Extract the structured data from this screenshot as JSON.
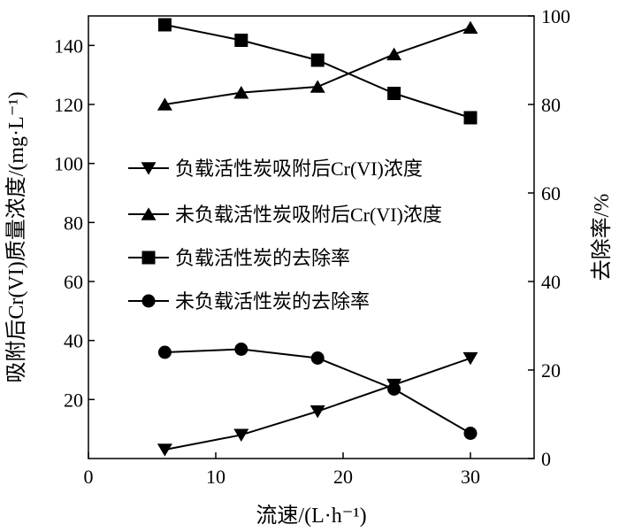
{
  "chart_data": {
    "type": "line",
    "xlabel": "流速/(L·h⁻¹)",
    "ylabel_left": "吸附后Cr(VI)质量浓度/(mg·L⁻¹)",
    "ylabel_right": "去除率/%",
    "xlim": [
      0,
      35
    ],
    "ylim_left": [
      0,
      150
    ],
    "ylim_right": [
      0,
      100
    ],
    "x_ticks": [
      0,
      10,
      20,
      30
    ],
    "y_left_ticks": [
      20,
      40,
      60,
      80,
      100,
      120,
      140
    ],
    "y_right_ticks": [
      0,
      20,
      40,
      60,
      80,
      100
    ],
    "grid": false,
    "legend_position": "center-left",
    "x": [
      6,
      12,
      18,
      24,
      30
    ],
    "series": [
      {
        "name": "负载活性炭吸附后Cr(VI)浓度",
        "marker": "triangle-down",
        "axis": "left",
        "values": [
          3,
          8,
          16,
          25,
          34
        ]
      },
      {
        "name": "未负载活性炭吸附后Cr(VI)浓度",
        "marker": "triangle-up",
        "axis": "left",
        "values": [
          120,
          124,
          126,
          137,
          146
        ]
      },
      {
        "name": "负载活性炭的去除率",
        "marker": "square",
        "axis": "right",
        "values": [
          98,
          94.5,
          90,
          82.5,
          77
        ]
      },
      {
        "name": "未负载活性炭的去除率",
        "marker": "circle",
        "axis": "right",
        "values": [
          24,
          24.7,
          22.7,
          15.7,
          5.7
        ]
      }
    ]
  }
}
